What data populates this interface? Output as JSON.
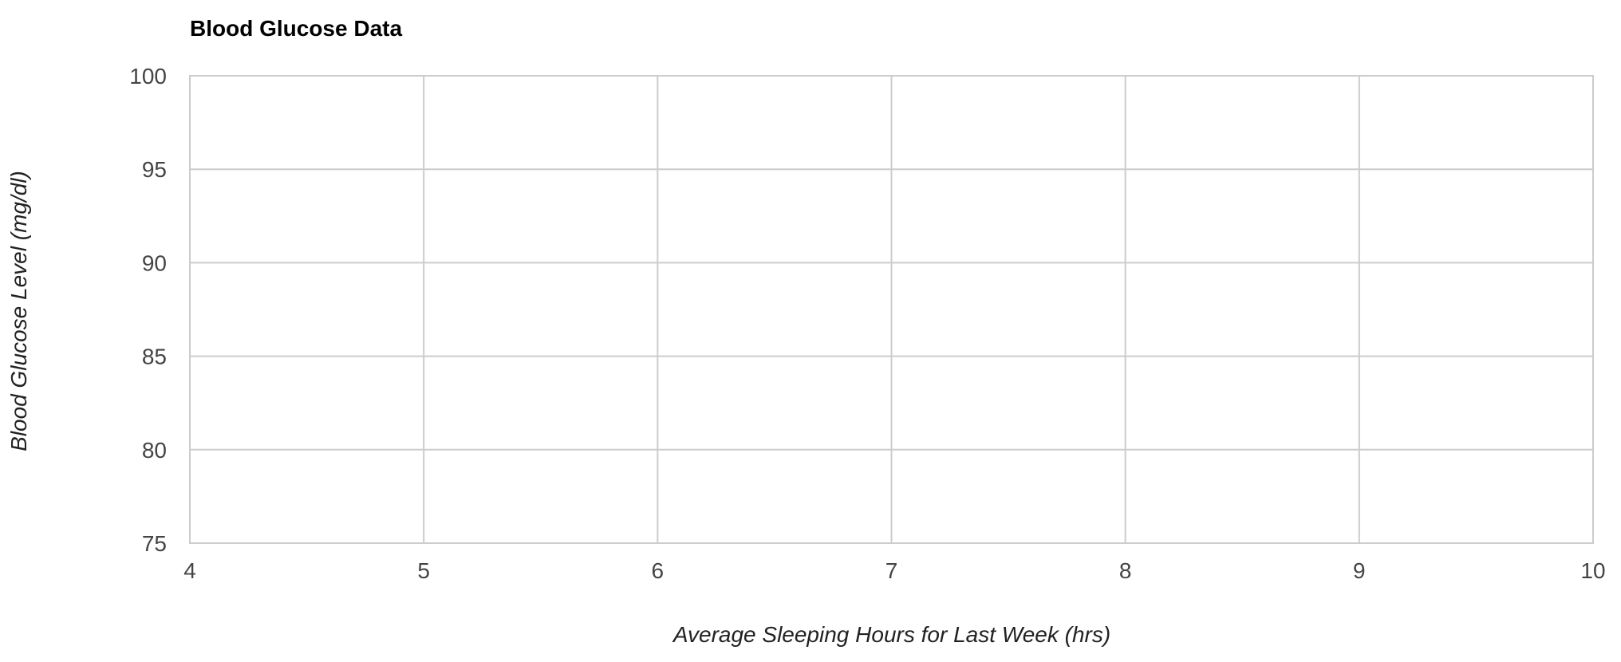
{
  "chart_data": {
    "type": "scatter",
    "title": "Blood Glucose Data",
    "xlabel": "Average Sleeping Hours for Last Week (hrs)",
    "ylabel": "Blood Glucose Level (mg/dl)",
    "xlim": [
      4,
      10
    ],
    "ylim": [
      75,
      100
    ],
    "x_ticks": [
      "4",
      "5",
      "6",
      "7",
      "8",
      "9",
      "10"
    ],
    "y_ticks": [
      "100",
      "95",
      "90",
      "85",
      "80",
      "75"
    ],
    "grid": true,
    "series": [
      {
        "points": []
      }
    ],
    "colors": {
      "grid": "#cccccc",
      "tick_text": "#444444",
      "title": "#000000"
    }
  }
}
